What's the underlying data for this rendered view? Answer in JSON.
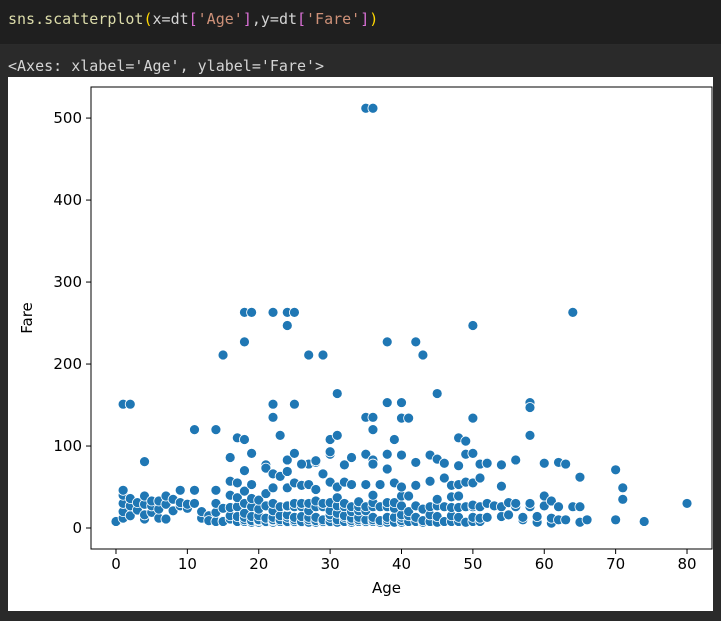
{
  "code": {
    "fn": "sns.scatterplot",
    "open_paren": "(",
    "arg1_name": "x=",
    "arg1_var": "dt",
    "arg1_open": "[",
    "arg1_key": "'Age'",
    "arg1_close": "]",
    "comma": ",",
    "arg2_name": "y=",
    "arg2_var": "dt",
    "arg2_open": "[",
    "arg2_key": "'Fare'",
    "arg2_close": "]",
    "close_paren": ")"
  },
  "output_text": "<Axes: xlabel='Age', ylabel='Fare'>",
  "colors": {
    "marker": "#1f77b4",
    "marker_edge": "#ffffff"
  },
  "chart_data": {
    "type": "scatter",
    "xlabel": "Age",
    "ylabel": "Fare",
    "xlim": [
      -3.5,
      83.5
    ],
    "ylim": [
      -25.6,
      537.9
    ],
    "xticks": [
      0,
      10,
      20,
      30,
      40,
      50,
      60,
      70,
      80
    ],
    "yticks": [
      0,
      100,
      200,
      300,
      400,
      500
    ],
    "grid": false,
    "legend": "none",
    "points": [
      [
        35,
        512
      ],
      [
        36,
        512
      ],
      [
        18,
        263
      ],
      [
        19,
        263
      ],
      [
        22,
        263
      ],
      [
        24,
        263
      ],
      [
        25,
        263
      ],
      [
        24,
        247
      ],
      [
        64,
        263
      ],
      [
        18,
        227
      ],
      [
        38,
        227
      ],
      [
        42,
        227
      ],
      [
        15,
        211
      ],
      [
        27,
        211
      ],
      [
        29,
        211
      ],
      [
        43,
        211
      ],
      [
        50,
        247
      ],
      [
        31,
        164
      ],
      [
        45,
        164
      ],
      [
        1,
        151
      ],
      [
        2,
        151
      ],
      [
        22,
        151
      ],
      [
        25,
        151
      ],
      [
        58,
        153
      ],
      [
        58,
        147
      ],
      [
        38,
        153
      ],
      [
        40,
        153
      ],
      [
        35,
        135
      ],
      [
        36,
        135
      ],
      [
        22,
        135
      ],
      [
        50,
        134
      ],
      [
        40,
        134
      ],
      [
        41,
        134
      ],
      [
        11,
        120
      ],
      [
        14,
        120
      ],
      [
        36,
        120
      ],
      [
        17,
        110
      ],
      [
        18,
        108
      ],
      [
        30,
        108
      ],
      [
        39,
        108
      ],
      [
        23,
        113
      ],
      [
        31,
        113
      ],
      [
        48,
        110
      ],
      [
        58,
        113
      ],
      [
        49,
        106
      ],
      [
        4,
        81
      ],
      [
        16,
        86
      ],
      [
        19,
        91
      ],
      [
        21,
        77
      ],
      [
        24,
        83
      ],
      [
        25,
        91
      ],
      [
        27,
        78
      ],
      [
        28,
        80
      ],
      [
        30,
        90
      ],
      [
        33,
        86
      ],
      [
        35,
        90
      ],
      [
        36,
        83
      ],
      [
        38,
        90
      ],
      [
        40,
        89
      ],
      [
        42,
        80
      ],
      [
        44,
        89
      ],
      [
        45,
        84
      ],
      [
        46,
        79
      ],
      [
        48,
        76
      ],
      [
        49,
        90
      ],
      [
        50,
        91
      ],
      [
        51,
        78
      ],
      [
        52,
        80
      ],
      [
        54,
        77
      ],
      [
        56,
        83
      ],
      [
        60,
        79
      ],
      [
        62,
        80
      ],
      [
        63,
        78
      ],
      [
        70,
        71
      ],
      [
        0,
        8
      ],
      [
        1,
        12
      ],
      [
        1,
        20
      ],
      [
        1,
        30
      ],
      [
        1,
        40
      ],
      [
        1,
        46
      ],
      [
        2,
        15
      ],
      [
        2,
        27
      ],
      [
        2,
        36
      ],
      [
        3,
        22
      ],
      [
        3,
        31
      ],
      [
        4,
        11
      ],
      [
        4,
        16
      ],
      [
        4,
        29
      ],
      [
        4,
        39
      ],
      [
        5,
        19
      ],
      [
        5,
        27
      ],
      [
        5,
        33
      ],
      [
        6,
        12
      ],
      [
        6,
        23
      ],
      [
        6,
        33
      ],
      [
        7,
        11
      ],
      [
        7,
        29
      ],
      [
        7,
        39
      ],
      [
        8,
        21
      ],
      [
        8,
        35
      ],
      [
        9,
        27
      ],
      [
        9,
        31
      ],
      [
        9,
        46
      ],
      [
        10,
        24
      ],
      [
        10,
        29
      ],
      [
        11,
        46
      ],
      [
        11,
        30
      ],
      [
        12,
        12
      ],
      [
        12,
        20
      ],
      [
        13,
        15
      ],
      [
        13,
        9
      ],
      [
        14,
        8
      ],
      [
        14,
        19
      ],
      [
        14,
        30
      ],
      [
        14,
        46
      ],
      [
        15,
        9
      ],
      [
        15,
        24
      ],
      [
        15,
        8
      ],
      [
        16,
        11
      ],
      [
        16,
        15
      ],
      [
        16,
        25
      ],
      [
        16,
        40
      ],
      [
        16,
        57
      ],
      [
        17,
        8
      ],
      [
        17,
        14
      ],
      [
        17,
        26
      ],
      [
        17,
        37
      ],
      [
        17,
        55
      ],
      [
        18,
        8
      ],
      [
        18,
        10
      ],
      [
        18,
        13
      ],
      [
        18,
        18
      ],
      [
        18,
        30
      ],
      [
        18,
        45
      ],
      [
        18,
        70
      ],
      [
        19,
        7
      ],
      [
        19,
        9
      ],
      [
        19,
        14
      ],
      [
        19,
        26
      ],
      [
        19,
        36
      ],
      [
        19,
        53
      ],
      [
        20,
        7
      ],
      [
        20,
        9
      ],
      [
        20,
        10
      ],
      [
        20,
        15
      ],
      [
        20,
        23
      ],
      [
        20,
        34
      ],
      [
        21,
        7
      ],
      [
        21,
        8
      ],
      [
        21,
        12
      ],
      [
        21,
        27
      ],
      [
        21,
        42
      ],
      [
        21,
        73
      ],
      [
        22,
        7
      ],
      [
        22,
        9
      ],
      [
        22,
        10
      ],
      [
        22,
        13
      ],
      [
        22,
        21
      ],
      [
        22,
        30
      ],
      [
        22,
        49
      ],
      [
        22,
        66
      ],
      [
        23,
        8
      ],
      [
        23,
        10
      ],
      [
        23,
        15
      ],
      [
        23,
        26
      ],
      [
        23,
        63
      ],
      [
        24,
        7
      ],
      [
        24,
        8
      ],
      [
        24,
        13
      ],
      [
        24,
        16
      ],
      [
        24,
        26
      ],
      [
        24,
        27
      ],
      [
        24,
        49
      ],
      [
        24,
        69
      ],
      [
        25,
        7
      ],
      [
        25,
        8
      ],
      [
        25,
        10
      ],
      [
        25,
        13
      ],
      [
        25,
        26
      ],
      [
        25,
        30
      ],
      [
        25,
        55
      ],
      [
        26,
        7
      ],
      [
        26,
        8
      ],
      [
        26,
        14
      ],
      [
        26,
        26
      ],
      [
        26,
        30
      ],
      [
        26,
        52
      ],
      [
        26,
        78
      ],
      [
        27,
        7
      ],
      [
        27,
        10
      ],
      [
        27,
        13
      ],
      [
        27,
        21
      ],
      [
        27,
        30
      ],
      [
        27,
        53
      ],
      [
        28,
        7
      ],
      [
        28,
        9
      ],
      [
        28,
        13
      ],
      [
        28,
        26
      ],
      [
        28,
        33
      ],
      [
        28,
        47
      ],
      [
        28,
        82
      ],
      [
        29,
        7
      ],
      [
        29,
        8
      ],
      [
        29,
        10
      ],
      [
        29,
        26
      ],
      [
        29,
        30
      ],
      [
        29,
        66
      ],
      [
        30,
        7
      ],
      [
        30,
        8
      ],
      [
        30,
        13
      ],
      [
        30,
        16
      ],
      [
        30,
        21
      ],
      [
        30,
        31
      ],
      [
        30,
        56
      ],
      [
        30,
        93
      ],
      [
        31,
        7
      ],
      [
        31,
        10
      ],
      [
        31,
        18
      ],
      [
        31,
        27
      ],
      [
        31,
        37
      ],
      [
        31,
        50
      ],
      [
        32,
        8
      ],
      [
        32,
        13
      ],
      [
        32,
        15
      ],
      [
        32,
        26
      ],
      [
        32,
        30
      ],
      [
        32,
        56
      ],
      [
        32,
        77
      ],
      [
        33,
        7
      ],
      [
        33,
        9
      ],
      [
        33,
        12
      ],
      [
        33,
        20
      ],
      [
        33,
        26
      ],
      [
        33,
        53
      ],
      [
        34,
        8
      ],
      [
        34,
        10
      ],
      [
        34,
        13
      ],
      [
        34,
        21
      ],
      [
        34,
        26
      ],
      [
        34,
        32
      ],
      [
        35,
        7
      ],
      [
        35,
        8
      ],
      [
        35,
        10
      ],
      [
        35,
        21
      ],
      [
        35,
        26
      ],
      [
        35,
        53
      ],
      [
        36,
        8
      ],
      [
        36,
        10
      ],
      [
        36,
        13
      ],
      [
        36,
        26
      ],
      [
        36,
        31
      ],
      [
        36,
        40
      ],
      [
        36,
        78
      ],
      [
        37,
        7
      ],
      [
        37,
        9
      ],
      [
        37,
        26
      ],
      [
        37,
        53
      ],
      [
        38,
        7
      ],
      [
        38,
        10
      ],
      [
        38,
        13
      ],
      [
        38,
        26
      ],
      [
        38,
        31
      ],
      [
        38,
        72
      ],
      [
        39,
        7
      ],
      [
        39,
        13
      ],
      [
        39,
        24
      ],
      [
        39,
        31
      ],
      [
        39,
        55
      ],
      [
        40,
        7
      ],
      [
        40,
        9
      ],
      [
        40,
        13
      ],
      [
        40,
        16
      ],
      [
        40,
        27
      ],
      [
        40,
        39
      ],
      [
        40,
        50
      ],
      [
        41,
        8
      ],
      [
        41,
        15
      ],
      [
        41,
        20
      ],
      [
        41,
        39
      ],
      [
        42,
        8
      ],
      [
        42,
        13
      ],
      [
        42,
        27
      ],
      [
        42,
        52
      ],
      [
        43,
        7
      ],
      [
        43,
        9
      ],
      [
        43,
        23
      ],
      [
        44,
        8
      ],
      [
        44,
        16
      ],
      [
        44,
        26
      ],
      [
        44,
        57
      ],
      [
        45,
        7
      ],
      [
        45,
        14
      ],
      [
        45,
        27
      ],
      [
        45,
        35
      ],
      [
        46,
        8
      ],
      [
        46,
        26
      ],
      [
        46,
        61
      ],
      [
        47,
        8
      ],
      [
        47,
        15
      ],
      [
        47,
        25
      ],
      [
        47,
        38
      ],
      [
        47,
        52
      ],
      [
        48,
        8
      ],
      [
        48,
        13
      ],
      [
        48,
        25
      ],
      [
        48,
        39
      ],
      [
        48,
        53
      ],
      [
        49,
        7
      ],
      [
        49,
        26
      ],
      [
        49,
        56
      ],
      [
        50,
        8
      ],
      [
        50,
        13
      ],
      [
        50,
        26
      ],
      [
        50,
        28
      ],
      [
        50,
        55
      ],
      [
        51,
        8
      ],
      [
        51,
        12
      ],
      [
        51,
        26
      ],
      [
        51,
        61
      ],
      [
        52,
        13
      ],
      [
        52,
        30
      ],
      [
        52,
        79
      ],
      [
        53,
        27
      ],
      [
        54,
        14
      ],
      [
        54,
        26
      ],
      [
        54,
        51
      ],
      [
        54,
        77
      ],
      [
        55,
        16
      ],
      [
        55,
        31
      ],
      [
        56,
        26
      ],
      [
        56,
        30
      ],
      [
        57,
        10
      ],
      [
        57,
        13
      ],
      [
        58,
        26
      ],
      [
        58,
        30
      ],
      [
        59,
        7
      ],
      [
        59,
        14
      ],
      [
        60,
        27
      ],
      [
        60,
        39
      ],
      [
        61,
        6
      ],
      [
        61,
        12
      ],
      [
        61,
        33
      ],
      [
        62,
        10
      ],
      [
        62,
        26
      ],
      [
        63,
        10
      ],
      [
        64,
        26
      ],
      [
        65,
        7
      ],
      [
        65,
        26
      ],
      [
        65,
        62
      ],
      [
        66,
        10
      ],
      [
        70,
        10
      ],
      [
        70,
        71
      ],
      [
        71,
        35
      ],
      [
        71,
        49
      ],
      [
        74,
        8
      ],
      [
        80,
        30
      ]
    ]
  }
}
